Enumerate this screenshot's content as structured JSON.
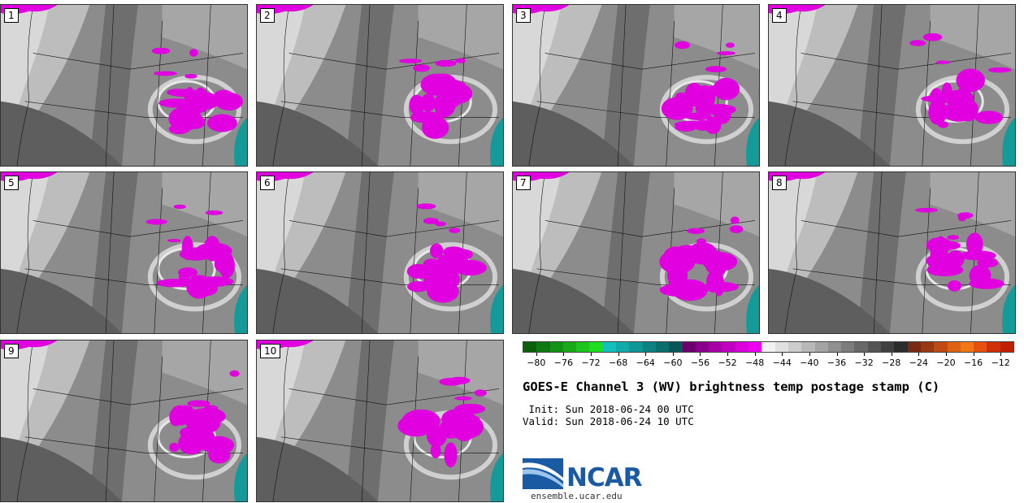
{
  "panels": [
    {
      "label": "1"
    },
    {
      "label": "2"
    },
    {
      "label": "3"
    },
    {
      "label": "4"
    },
    {
      "label": "5"
    },
    {
      "label": "6"
    },
    {
      "label": "7"
    },
    {
      "label": "8"
    },
    {
      "label": "9"
    },
    {
      "label": "10"
    }
  ],
  "colorbar": {
    "colors": [
      "#0a5f0a",
      "#0f7a0f",
      "#139313",
      "#17ac17",
      "#1bc51b",
      "#1fde1f",
      "#12c0c0",
      "#11abab",
      "#0f9696",
      "#0d8282",
      "#0b6d6d",
      "#095858",
      "#6e006e",
      "#8a008a",
      "#a600a6",
      "#c200c2",
      "#dc00dc",
      "#f000f0",
      "#f2f2f2",
      "#e0e0e0",
      "#cccccc",
      "#b8b8b8",
      "#a4a4a4",
      "#909090",
      "#7c7c7c",
      "#686868",
      "#545454",
      "#404040",
      "#2c2c2c",
      "#7a2a10",
      "#9a3812",
      "#c04a14",
      "#e06014",
      "#f07814",
      "#e85010",
      "#d03008",
      "#c02000"
    ],
    "tick_labels": [
      "−80",
      "−76",
      "−72",
      "−68",
      "−64",
      "−60",
      "−56",
      "−52",
      "−48",
      "−44",
      "−40",
      "−36",
      "−32",
      "−28",
      "−24",
      "−20",
      "−16",
      "−12"
    ],
    "tick_values": [
      -80,
      -76,
      -72,
      -68,
      -64,
      -60,
      -56,
      -52,
      -48,
      -44,
      -40,
      -36,
      -32,
      -28,
      -24,
      -20,
      -16,
      -12
    ],
    "range": [
      -82,
      -10
    ]
  },
  "title": "GOES-E Channel 3 (WV) brightness temp postage stamp (C)",
  "init": " Init: Sun 2018-06-24 00 UTC",
  "valid": "Valid: Sun 2018-06-24 10 UTC",
  "logo": {
    "text": "NCAR",
    "url": "ensemble.ucar.edu",
    "color": "#1a5aa3"
  }
}
